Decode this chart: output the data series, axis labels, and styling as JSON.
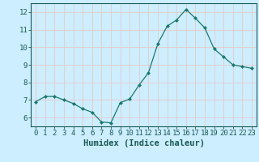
{
  "x": [
    0,
    1,
    2,
    3,
    4,
    5,
    6,
    7,
    8,
    9,
    10,
    11,
    12,
    13,
    14,
    15,
    16,
    17,
    18,
    19,
    20,
    21,
    22,
    23
  ],
  "y": [
    6.9,
    7.2,
    7.2,
    7.0,
    6.8,
    6.5,
    6.3,
    5.75,
    5.7,
    6.85,
    7.05,
    7.85,
    8.55,
    10.2,
    11.2,
    11.55,
    12.15,
    11.65,
    11.1,
    9.9,
    9.45,
    9.0,
    8.9,
    8.8
  ],
  "xlabel": "Humidex (Indice chaleur)",
  "xlim": [
    -0.5,
    23.5
  ],
  "ylim": [
    5.5,
    12.5
  ],
  "yticks": [
    6,
    7,
    8,
    9,
    10,
    11,
    12
  ],
  "xticks": [
    0,
    1,
    2,
    3,
    4,
    5,
    6,
    7,
    8,
    9,
    10,
    11,
    12,
    13,
    14,
    15,
    16,
    17,
    18,
    19,
    20,
    21,
    22,
    23
  ],
  "line_color": "#1a7a6e",
  "marker": "D",
  "marker_size": 2,
  "bg_color": "#cceeff",
  "grid_color": "#e8c8c8",
  "axis_color": "#1a5a54",
  "xlabel_fontsize": 7.5,
  "tick_fontsize": 6.5
}
